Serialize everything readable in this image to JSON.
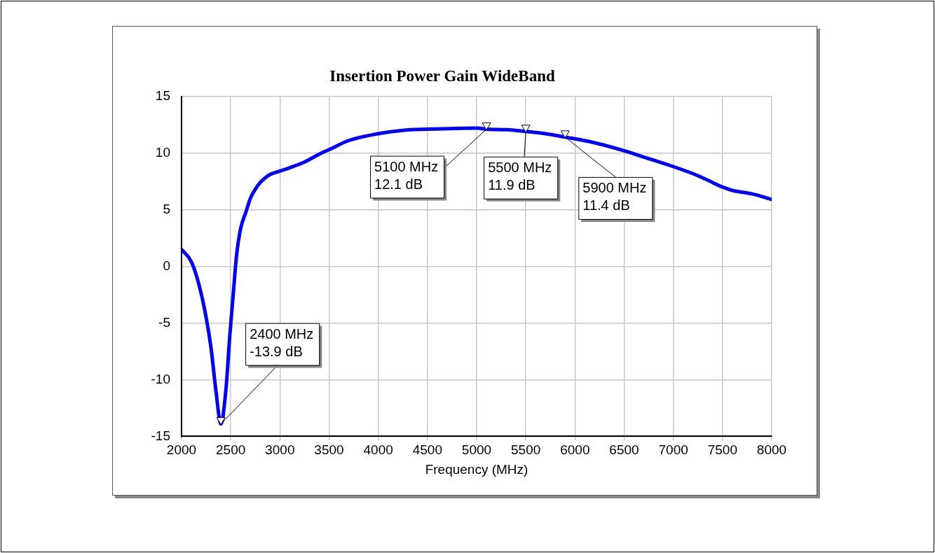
{
  "chart_data": {
    "type": "line",
    "title": "Insertion Power Gain WideBand",
    "xlabel": "Frequency (MHz)",
    "x": [
      2000,
      2100,
      2180,
      2250,
      2300,
      2350,
      2400,
      2450,
      2490,
      2530,
      2560,
      2600,
      2655,
      2700,
      2750,
      2800,
      2850,
      2900,
      3000,
      3100,
      3250,
      3400,
      3500,
      3700,
      4000,
      4250,
      4500,
      5000,
      5100,
      5300,
      5500,
      5700,
      5900,
      6200,
      6500,
      6750,
      7000,
      7250,
      7500,
      7600,
      7800,
      8000
    ],
    "series": [
      {
        "color": "#0000ff",
        "values": [
          1.5,
          0.4,
          -1.7,
          -4.5,
          -7.2,
          -11,
          -13.9,
          -11,
          -6.2,
          -2,
          1.0,
          3.3,
          4.8,
          6.0,
          6.8,
          7.4,
          7.8,
          8.1,
          8.4,
          8.7,
          9.2,
          9.9,
          10.3,
          11.1,
          11.7,
          12.0,
          12.1,
          12.2,
          12.1,
          12.05,
          11.9,
          11.7,
          11.4,
          10.9,
          10.2,
          9.5,
          8.8,
          8.0,
          7.0,
          6.7,
          6.4,
          5.9
        ]
      }
    ],
    "xlim": [
      2000,
      8000
    ],
    "xticks": [
      2000,
      2500,
      3000,
      3500,
      4000,
      4500,
      5000,
      5500,
      6000,
      6500,
      7000,
      7500,
      8000
    ],
    "ylim": [
      -15,
      15
    ],
    "yticks": [
      -15,
      -10,
      -5,
      0,
      5,
      10,
      15
    ],
    "grid": true,
    "legend": false,
    "marker": "none",
    "line_style": "solid",
    "annotations": [
      {
        "text": "2400 MHz\n-13.9 dB",
        "x": 2400,
        "y": -13.9
      },
      {
        "text": "5100 MHz\n12.1 dB",
        "x": 5100,
        "y": 12.1
      },
      {
        "text": "5500 MHz\n11.9 dB",
        "x": 5500,
        "y": 11.9
      },
      {
        "text": "5900 MHz\n11.4 dB",
        "x": 5900,
        "y": 11.4
      }
    ]
  }
}
